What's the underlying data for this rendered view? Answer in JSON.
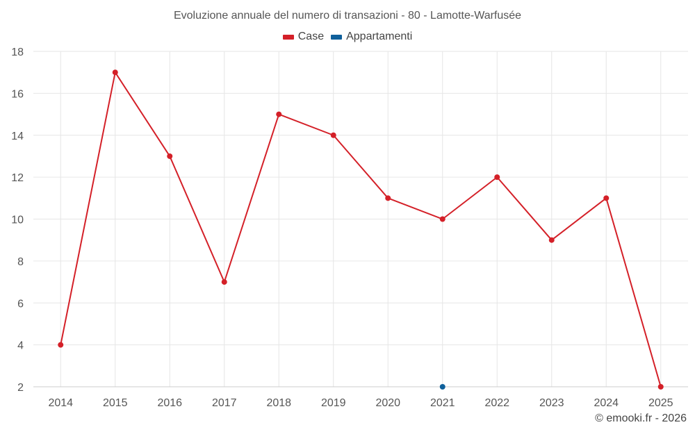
{
  "chart_data": {
    "type": "line",
    "title": "Evoluzione annuale del numero di transazioni - 80 - Lamotte-Warfusée",
    "categories": [
      "2014",
      "2015",
      "2016",
      "2017",
      "2018",
      "2019",
      "2020",
      "2021",
      "2022",
      "2023",
      "2024",
      "2025"
    ],
    "series": [
      {
        "name": "Case",
        "color": "#d42028",
        "values": [
          4,
          17,
          13,
          7,
          15,
          14,
          11,
          10,
          12,
          9,
          11,
          2
        ]
      },
      {
        "name": "Appartamenti",
        "color": "#0f609b",
        "values": [
          null,
          null,
          null,
          null,
          null,
          null,
          null,
          2,
          null,
          null,
          null,
          null
        ]
      }
    ],
    "ylim": [
      2,
      18
    ],
    "yticks": [
      2,
      4,
      6,
      8,
      10,
      12,
      14,
      16,
      18
    ],
    "grid": true,
    "legend_position": "top-center"
  },
  "credit": "© emooki.fr - 2026",
  "colors": {
    "grid": "#e6e6e6",
    "axis": "#cccccc"
  }
}
